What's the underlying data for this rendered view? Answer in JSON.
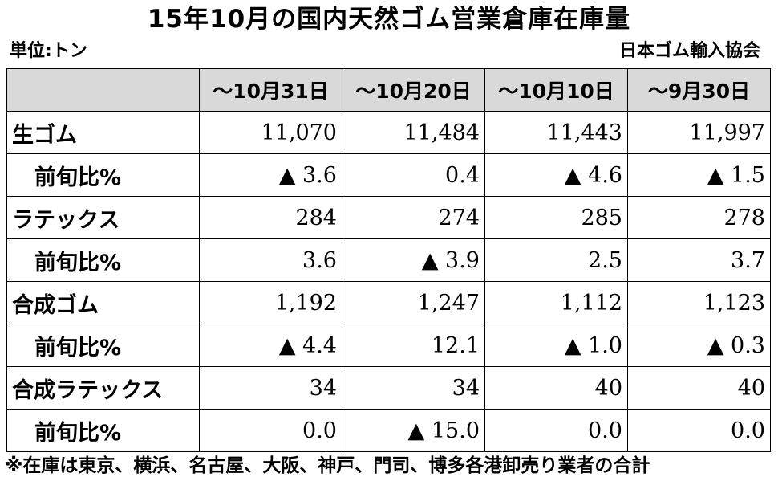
{
  "title": "15年10月の国内天然ゴム営業倉庫在庫量",
  "unit": "単位:トン",
  "source": "日本ゴム輸入協会",
  "footnote": "※在庫は東京、横浜、名古屋、大阪、神戸、門司、博多各港卸売り業者の合計",
  "table": {
    "headers": [
      "",
      "～10月31日",
      "～10月20日",
      "～10月10日",
      "～9月30日"
    ],
    "rows": [
      {
        "label": "生ゴム",
        "sub": false,
        "cells": [
          {
            "text": "11,070",
            "neg": false
          },
          {
            "text": "11,484",
            "neg": false
          },
          {
            "text": "11,443",
            "neg": false
          },
          {
            "text": "11,997",
            "neg": false
          }
        ]
      },
      {
        "label": "前旬比%",
        "sub": true,
        "cells": [
          {
            "text": "3.6",
            "neg": true
          },
          {
            "text": "0.4",
            "neg": false
          },
          {
            "text": "4.6",
            "neg": true
          },
          {
            "text": "1.5",
            "neg": true
          }
        ]
      },
      {
        "label": "ラテックス",
        "sub": false,
        "cells": [
          {
            "text": "284",
            "neg": false
          },
          {
            "text": "274",
            "neg": false
          },
          {
            "text": "285",
            "neg": false
          },
          {
            "text": "278",
            "neg": false
          }
        ]
      },
      {
        "label": "前旬比%",
        "sub": true,
        "cells": [
          {
            "text": "3.6",
            "neg": false
          },
          {
            "text": "3.9",
            "neg": true
          },
          {
            "text": "2.5",
            "neg": false
          },
          {
            "text": "3.7",
            "neg": false
          }
        ]
      },
      {
        "label": "合成ゴム",
        "sub": false,
        "cells": [
          {
            "text": "1,192",
            "neg": false
          },
          {
            "text": "1,247",
            "neg": false
          },
          {
            "text": "1,112",
            "neg": false
          },
          {
            "text": "1,123",
            "neg": false
          }
        ]
      },
      {
        "label": "前旬比%",
        "sub": true,
        "cells": [
          {
            "text": "4.4",
            "neg": true
          },
          {
            "text": "12.1",
            "neg": false
          },
          {
            "text": "1.0",
            "neg": true
          },
          {
            "text": "0.3",
            "neg": true
          }
        ]
      },
      {
        "label": "合成ラテックス",
        "sub": false,
        "cells": [
          {
            "text": "34",
            "neg": false
          },
          {
            "text": "34",
            "neg": false
          },
          {
            "text": "40",
            "neg": false
          },
          {
            "text": "40",
            "neg": false
          }
        ]
      },
      {
        "label": "前旬比%",
        "sub": true,
        "cells": [
          {
            "text": "0.0",
            "neg": false
          },
          {
            "text": "15.0",
            "neg": true
          },
          {
            "text": "0.0",
            "neg": false
          },
          {
            "text": "0.0",
            "neg": false
          }
        ]
      }
    ]
  },
  "colors": {
    "header_bg": "#d9d9d9",
    "border": "#000000",
    "text": "#000000",
    "negative_marker": "▲"
  }
}
